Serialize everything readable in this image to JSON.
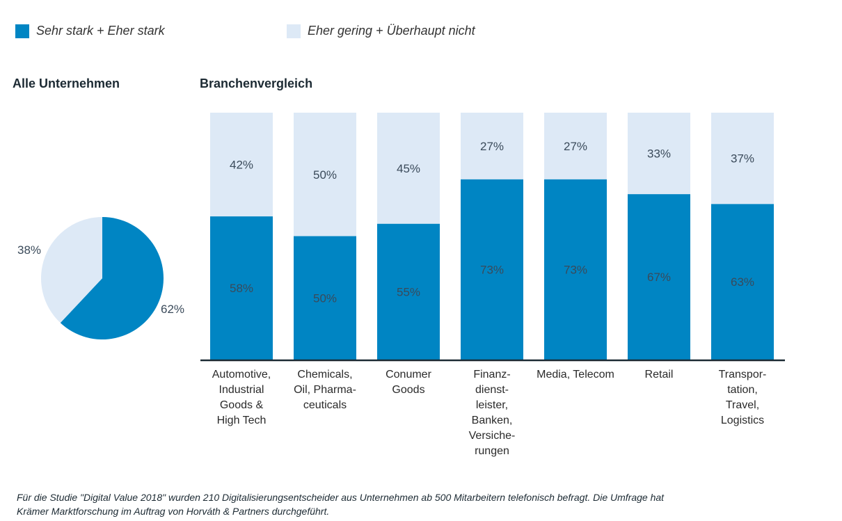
{
  "legend": [
    {
      "label": "Sehr stark + Eher stark",
      "color": "#0085c3"
    },
    {
      "label": "Eher gering + Überhaupt nicht",
      "color": "#dde9f6"
    }
  ],
  "pie_title": "Alle Unternehmen",
  "bar_title": "Branchenvergleich",
  "footnote_line1": "Für die Studie \"Digital Value 2018\" wurden 210 Digitalisierungsentscheider aus Unternehmen ab 500 Mitarbeitern telefonisch befragt. Die Umfrage hat",
  "footnote_line2": "Krämer Marktforschung im Auftrag von Horváth & Partners durchgeführt.",
  "chart_data": [
    {
      "type": "pie",
      "title": "Alle Unternehmen",
      "slices": [
        {
          "label": "62%",
          "value": 62,
          "color": "#0085c3"
        },
        {
          "label": "38%",
          "value": 38,
          "color": "#dde9f6"
        }
      ]
    },
    {
      "type": "bar",
      "stacked": true,
      "title": "Branchenvergleich",
      "categories": [
        [
          "Automotive,",
          "Industrial",
          "Goods &",
          "High Tech"
        ],
        [
          "Chemicals,",
          "Oil, Pharma-",
          "ceuticals"
        ],
        [
          "Conumer",
          "Goods"
        ],
        [
          "Finanz-",
          "dienst-",
          "leister,",
          "Banken,",
          "Versiche-",
          "rungen"
        ],
        [
          "Media, Telecom"
        ],
        [
          "Retail"
        ],
        [
          "Transpor-",
          "tation,",
          "Travel,",
          "Logistics"
        ]
      ],
      "series": [
        {
          "name": "Sehr stark + Eher stark",
          "color": "#0085c3",
          "values": [
            58,
            50,
            55,
            73,
            73,
            67,
            63
          ]
        },
        {
          "name": "Eher gering + Überhaupt nicht",
          "color": "#dde9f6",
          "values": [
            42,
            50,
            45,
            27,
            27,
            33,
            37
          ]
        }
      ],
      "ylim": [
        0,
        100
      ],
      "grid": false
    }
  ]
}
